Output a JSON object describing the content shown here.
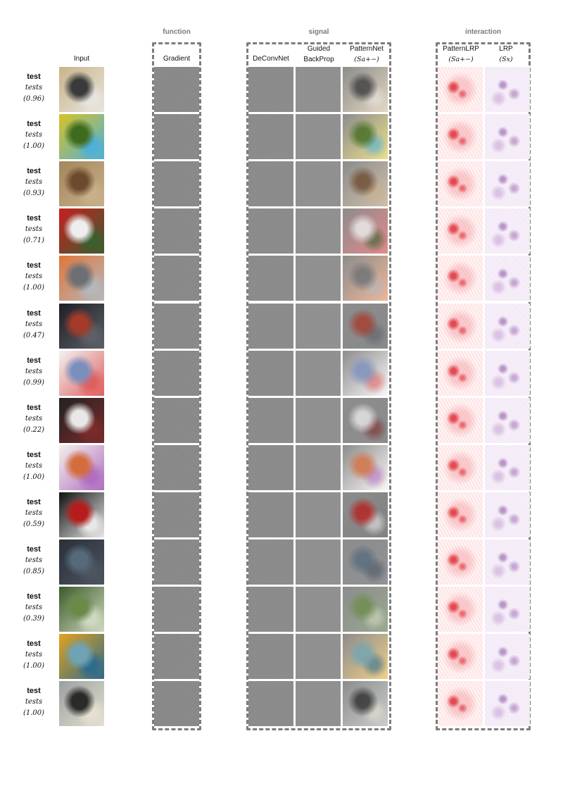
{
  "group_titles": {
    "function": "function",
    "signal": "signal",
    "interaction": "interaction"
  },
  "columns": {
    "input": "Input",
    "gradient": "Gradient",
    "deconvnet": "DeConvNet",
    "guided_line1": "Guided",
    "guided_line2": "BackProp",
    "patternnet_line1": "PatternNet",
    "patternnet_line2": "(Sa+−)",
    "patternlrp_line1": "PatternLRP",
    "patternlrp_line2": "(Sa+−)",
    "lrp_line1": "LRP",
    "lrp_line2": "(Sx)"
  },
  "rows": [
    {
      "label": "test",
      "sub": "tests",
      "score": "(0.96)",
      "colors": [
        "#c9b48a",
        "#3a3a3a",
        "#e8e4de"
      ]
    },
    {
      "label": "test",
      "sub": "tests",
      "score": "(1.00)",
      "colors": [
        "#d8c225",
        "#3f6b1e",
        "#4fb0d8"
      ]
    },
    {
      "label": "test",
      "sub": "tests",
      "score": "(0.93)",
      "colors": [
        "#a5865c",
        "#6b4a2e",
        "#c7b08a"
      ]
    },
    {
      "label": "test",
      "sub": "tests",
      "score": "(0.71)",
      "colors": [
        "#c81f1f",
        "#eeeeee",
        "#3b5e2f"
      ]
    },
    {
      "label": "test",
      "sub": "tests",
      "score": "(1.00)",
      "colors": [
        "#e0763a",
        "#6d6f73",
        "#b5b7ba"
      ]
    },
    {
      "label": "test",
      "sub": "tests",
      "score": "(0.47)",
      "colors": [
        "#1d1f24",
        "#a33a2a",
        "#5c6066"
      ]
    },
    {
      "label": "test",
      "sub": "tests",
      "score": "(0.99)",
      "colors": [
        "#f2f2f2",
        "#7b8fbd",
        "#e06060"
      ]
    },
    {
      "label": "test",
      "sub": "tests",
      "score": "(0.22)",
      "colors": [
        "#222222",
        "#e8e8e8",
        "#7a2a2a"
      ]
    },
    {
      "label": "test",
      "sub": "tests",
      "score": "(1.00)",
      "colors": [
        "#f4f0ea",
        "#d46d3d",
        "#b06fc2"
      ]
    },
    {
      "label": "test",
      "sub": "tests",
      "score": "(0.59)",
      "colors": [
        "#101010",
        "#b51c1c",
        "#e8e8e8"
      ]
    },
    {
      "label": "test",
      "sub": "tests",
      "score": "(0.85)",
      "colors": [
        "#2a2f38",
        "#556a7a",
        "#4c5460"
      ]
    },
    {
      "label": "test",
      "sub": "tests",
      "score": "(0.39)",
      "colors": [
        "#3c5a2a",
        "#6b8a4a",
        "#cfd8c0"
      ]
    },
    {
      "label": "test",
      "sub": "tests",
      "score": "(1.00)",
      "colors": [
        "#e3a21c",
        "#6fa3b4",
        "#2f6b8a"
      ]
    },
    {
      "label": "test",
      "sub": "tests",
      "score": "(1.00)",
      "colors": [
        "#9aa0a0",
        "#2a2a2a",
        "#e5e0d0"
      ]
    }
  ]
}
